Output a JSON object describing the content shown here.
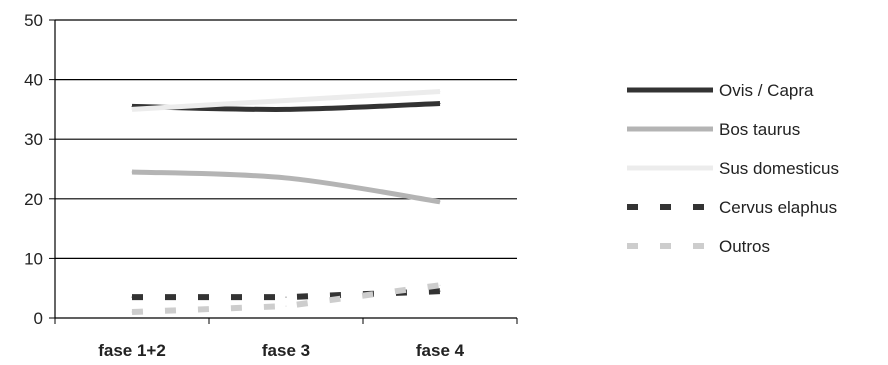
{
  "chart_data": {
    "type": "line",
    "categories": [
      "fase 1+2",
      "fase 3",
      "fase 4"
    ],
    "ylim": [
      0,
      50
    ],
    "yticks": [
      0,
      10,
      20,
      30,
      40,
      50
    ],
    "grid": true,
    "legend_position": "right",
    "series": [
      {
        "name": "Ovis / Capra",
        "values": [
          35.5,
          35,
          36
        ],
        "color": "#333333",
        "style": "solid"
      },
      {
        "name": "Bos taurus",
        "values": [
          24.5,
          23.5,
          19.5
        ],
        "color": "#b4b4b4",
        "style": "solid"
      },
      {
        "name": "Sus domesticus",
        "values": [
          35,
          36.5,
          38
        ],
        "color": "#ececec",
        "style": "solid"
      },
      {
        "name": "Cervus elaphus",
        "values": [
          3.5,
          3.5,
          4.5
        ],
        "color": "#333333",
        "style": "dashed"
      },
      {
        "name": "Outros",
        "values": [
          1,
          2,
          5.5
        ],
        "color": "#cdcdcd",
        "style": "dashed"
      }
    ]
  }
}
